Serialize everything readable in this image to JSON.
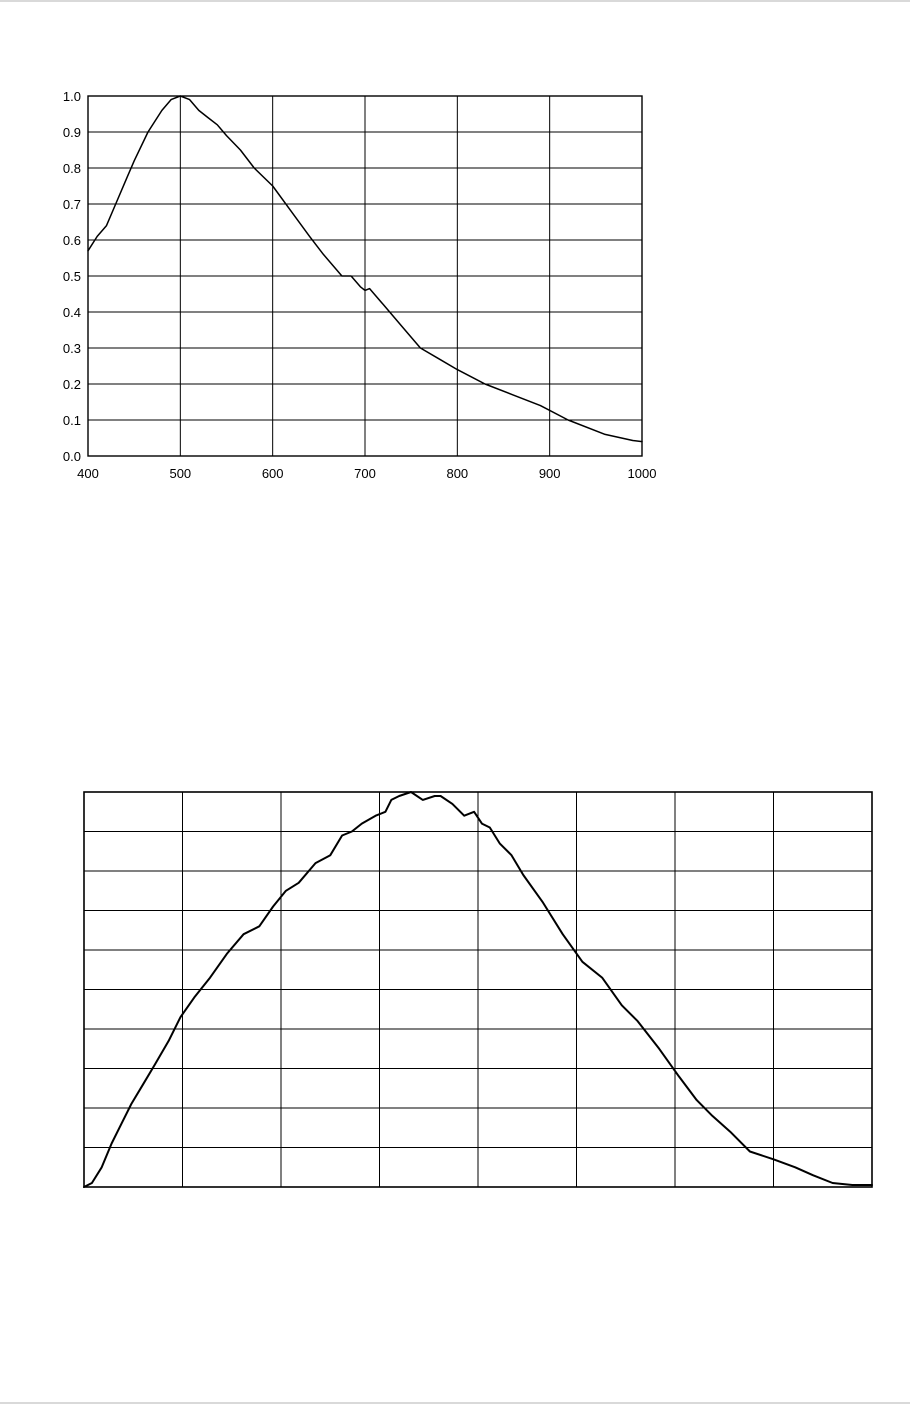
{
  "chart_data": [
    {
      "type": "line",
      "title": "",
      "xlabel": "",
      "ylabel": "",
      "xlim": [
        400,
        1000
      ],
      "ylim": [
        0,
        1.0
      ],
      "xticks": [
        "400",
        "500",
        "600",
        "700",
        "800",
        "900",
        "1000"
      ],
      "yticks": [
        "0.0",
        "0.1",
        "0.2",
        "0.3",
        "0.4",
        "0.5",
        "0.6",
        "0.7",
        "0.8",
        "0.9",
        "1.0"
      ],
      "grid": true,
      "legend": "none",
      "series": [
        {
          "x": [
            400,
            410,
            420,
            430,
            440,
            450,
            465,
            480,
            490,
            500,
            510,
            520,
            530,
            540,
            550,
            565,
            580,
            600,
            620,
            640,
            655,
            675,
            680,
            685,
            695,
            700,
            705,
            710,
            720,
            740,
            760,
            780,
            800,
            830,
            860,
            890,
            920,
            960,
            990,
            1000
          ],
          "y": [
            0.57,
            0.61,
            0.64,
            0.7,
            0.76,
            0.82,
            0.9,
            0.96,
            0.99,
            1.0,
            0.99,
            0.96,
            0.94,
            0.92,
            0.89,
            0.85,
            0.8,
            0.75,
            0.68,
            0.61,
            0.56,
            0.5,
            0.5,
            0.5,
            0.47,
            0.46,
            0.465,
            0.45,
            0.42,
            0.36,
            0.3,
            0.27,
            0.24,
            0.2,
            0.17,
            0.14,
            0.1,
            0.06,
            0.043,
            0.04
          ]
        }
      ]
    },
    {
      "type": "line",
      "title": "",
      "xlabel": "",
      "ylabel": "",
      "xlim": [
        0,
        8
      ],
      "ylim": [
        0,
        10
      ],
      "grid": true,
      "legend": "none",
      "series": [
        {
          "x": [
            0.0,
            0.08,
            0.18,
            0.28,
            0.38,
            0.48,
            0.6,
            0.72,
            0.86,
            0.98,
            1.12,
            1.28,
            1.45,
            1.62,
            1.78,
            1.92,
            2.05,
            2.18,
            2.35,
            2.5,
            2.62,
            2.72,
            2.82,
            2.96,
            3.06,
            3.12,
            3.2,
            3.32,
            3.44,
            3.56,
            3.62,
            3.74,
            3.86,
            3.96,
            4.04,
            4.12,
            4.22,
            4.34,
            4.46,
            4.66,
            4.86,
            5.06,
            5.26,
            5.46,
            5.62,
            5.84,
            6.04,
            6.22,
            6.38,
            6.56,
            6.76,
            7.0,
            7.22,
            7.4,
            7.6,
            7.8,
            8.0
          ],
          "y": [
            0.0,
            0.1,
            0.5,
            1.1,
            1.6,
            2.1,
            2.6,
            3.1,
            3.7,
            4.3,
            4.8,
            5.3,
            5.9,
            6.4,
            6.6,
            7.1,
            7.5,
            7.7,
            8.2,
            8.4,
            8.9,
            9.0,
            9.2,
            9.4,
            9.5,
            9.8,
            9.9,
            10.0,
            9.8,
            9.9,
            9.9,
            9.7,
            9.4,
            9.5,
            9.2,
            9.1,
            8.7,
            8.4,
            7.9,
            7.2,
            6.4,
            5.7,
            5.3,
            4.6,
            4.2,
            3.5,
            2.8,
            2.2,
            1.8,
            1.4,
            0.9,
            0.7,
            0.5,
            0.3,
            0.1,
            0.05,
            0.05
          ]
        }
      ]
    }
  ]
}
